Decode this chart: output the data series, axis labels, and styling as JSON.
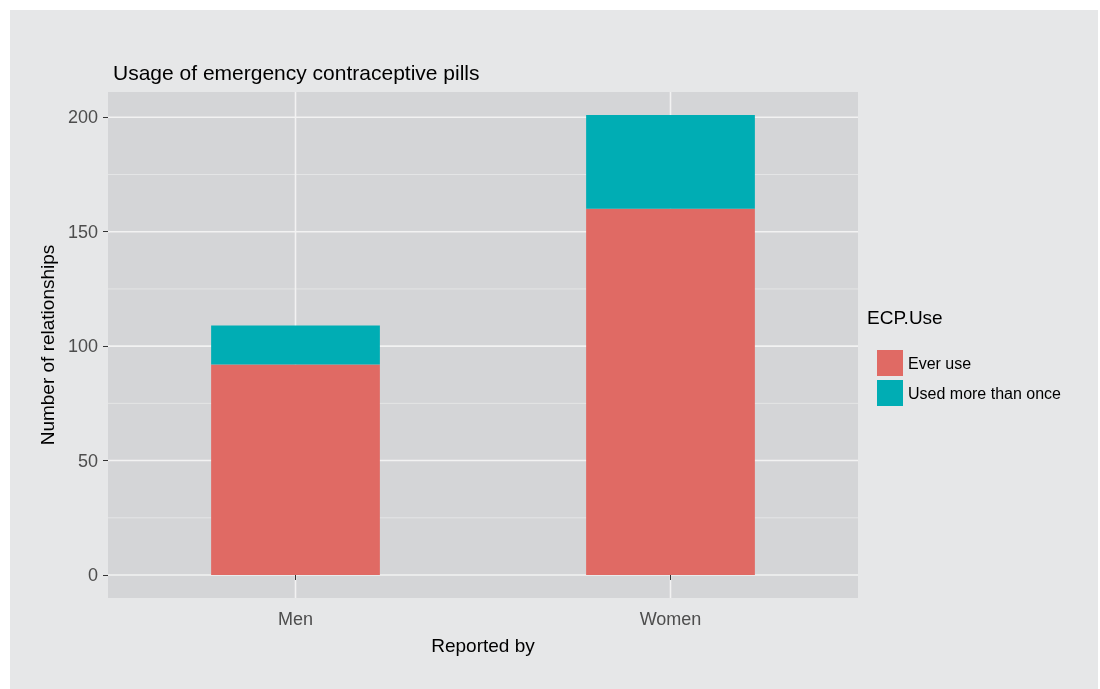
{
  "chart_data": {
    "type": "bar",
    "title": "Usage of emergency contraceptive pills",
    "xlabel": "Reported by",
    "ylabel": "Number of relationships",
    "legend_title": "ECP.Use",
    "categories": [
      "Men",
      "Women"
    ],
    "stacked": true,
    "series": [
      {
        "name": "Ever use",
        "color": "#e06a64",
        "values": [
          92,
          160
        ]
      },
      {
        "name": "Used more than once",
        "color": "#00adb4",
        "values": [
          17,
          41
        ]
      }
    ],
    "ylim": [
      -10.05,
      211.05
    ],
    "yticks": [
      0,
      50,
      100,
      150,
      200
    ],
    "grid": true,
    "legend": "right"
  }
}
